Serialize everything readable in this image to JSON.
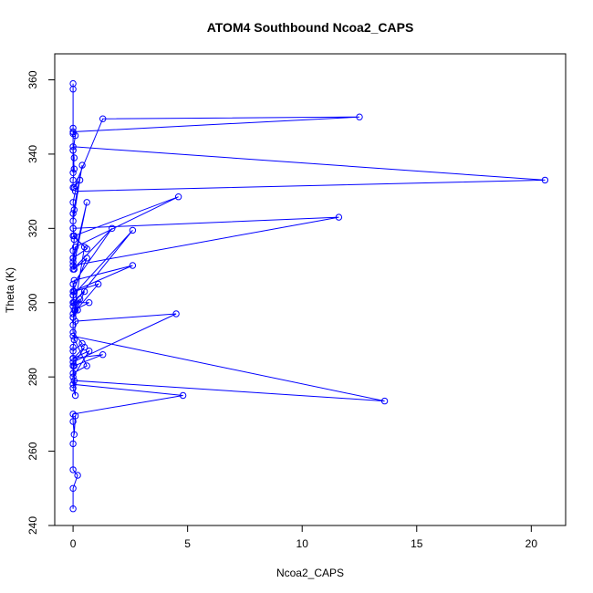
{
  "chart_data": {
    "type": "line",
    "title": "ATOM4 Southbound Ncoa2_CAPS",
    "xlabel": "Ncoa2_CAPS",
    "ylabel": "Theta (K)",
    "xlim": [
      -0.8,
      21.5
    ],
    "ylim": [
      240,
      367
    ],
    "xticks": [
      0,
      5,
      10,
      15,
      20
    ],
    "yticks": [
      240,
      260,
      280,
      300,
      320,
      340,
      360
    ],
    "grid": false,
    "color": "#0000ff",
    "series": [
      {
        "x": [
          0.0,
          0.0,
          0.0,
          0.0,
          0.0,
          0.05,
          0.0,
          0.0,
          0.3,
          0.05,
          1.3,
          12.5,
          0.0,
          0.1,
          0.0,
          0.05,
          0.0,
          0.0,
          20.6,
          0.1,
          0.0,
          0.05,
          0.0,
          0.4,
          0.0,
          0.0,
          0.05,
          4.6,
          0.1,
          0.0,
          0.0,
          11.6,
          0.0,
          0.05,
          0.0,
          0.0,
          0.6,
          0.0,
          1.7,
          0.0,
          0.0,
          2.6,
          0.05,
          0.1,
          0.0,
          0.5,
          0.0,
          0.6,
          0.0,
          0.05,
          0.6,
          0.0,
          2.6,
          0.05,
          0.0,
          0.0,
          0.3,
          0.0,
          1.1,
          0.05,
          0.0,
          0.2,
          0.0,
          0.5,
          0.0,
          0.7,
          0.05,
          0.0,
          0.0,
          0.4,
          0.0,
          0.0,
          4.5,
          0.1,
          0.05,
          0.0,
          0.0,
          0.5,
          0.0,
          0.0,
          0.7,
          0.0,
          1.3,
          0.05,
          0.0,
          0.6,
          0.0,
          13.6,
          0.05,
          0.0,
          0.1,
          0.0,
          0.0,
          4.8,
          0.0,
          0.0,
          0.05,
          0.1,
          0.0,
          0.0,
          0.2,
          0.0,
          0.0
        ],
        "y": [
          359,
          357.5,
          347,
          345.5,
          341,
          336,
          333,
          331,
          333,
          331,
          349.5,
          350,
          346,
          345,
          341,
          339,
          335,
          342,
          333,
          330,
          327,
          325,
          322,
          337,
          324,
          320,
          318,
          328.5,
          315,
          312,
          310,
          323,
          320,
          317,
          314,
          311,
          327,
          309,
          320,
          305,
          302,
          319.5,
          300,
          298,
          296,
          315,
          318,
          314.5,
          312,
          309,
          312,
          303,
          310,
          306,
          302,
          299,
          301,
          297,
          305,
          303,
          300,
          298,
          296,
          303,
          300,
          300,
          298,
          294,
          292,
          289,
          287,
          284,
          297,
          295,
          290,
          288,
          285,
          288,
          283,
          280,
          287,
          285,
          286,
          283,
          281,
          283,
          291,
          273.5,
          279,
          277,
          275,
          285,
          278,
          275,
          270,
          268,
          264.5,
          269.5,
          262,
          255,
          253.5,
          250,
          244.5
        ]
      }
    ]
  }
}
